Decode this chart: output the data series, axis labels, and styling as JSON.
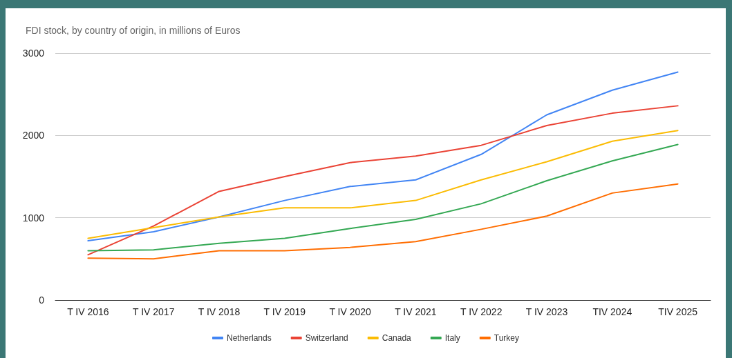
{
  "chart_data": {
    "type": "line",
    "title": "FDI stock, by country of origin, in millions of Euros",
    "categories": [
      "T IV 2016",
      "T IV 2017",
      "T IV 2018",
      "T IV 2019",
      "T IV 2020",
      "T IV 2021",
      "T IV 2022",
      "T IV 2023",
      "TIV 2024",
      "TIV 2025"
    ],
    "series": [
      {
        "name": "Netherlands",
        "color": "#4285f4",
        "values": [
          720,
          830,
          1010,
          1210,
          1380,
          1460,
          1770,
          2250,
          2550,
          2770
        ]
      },
      {
        "name": "Switzerland",
        "color": "#ea4335",
        "values": [
          550,
          900,
          1320,
          1500,
          1670,
          1750,
          1880,
          2120,
          2270,
          2360
        ]
      },
      {
        "name": "Canada",
        "color": "#fbbc04",
        "values": [
          750,
          880,
          1010,
          1120,
          1120,
          1210,
          1460,
          1680,
          1930,
          2060
        ]
      },
      {
        "name": "Italy",
        "color": "#34a853",
        "values": [
          600,
          610,
          690,
          750,
          870,
          980,
          1170,
          1450,
          1690,
          1890
        ]
      },
      {
        "name": "Turkey",
        "color": "#ff6d01",
        "values": [
          510,
          500,
          600,
          600,
          640,
          710,
          860,
          1020,
          1300,
          1410
        ]
      }
    ],
    "ylim": [
      0,
      3000
    ],
    "yticks": [
      0,
      1000,
      2000,
      3000
    ],
    "grid": "y",
    "legend": "bottom",
    "marker": "none",
    "line_style": "solid"
  }
}
